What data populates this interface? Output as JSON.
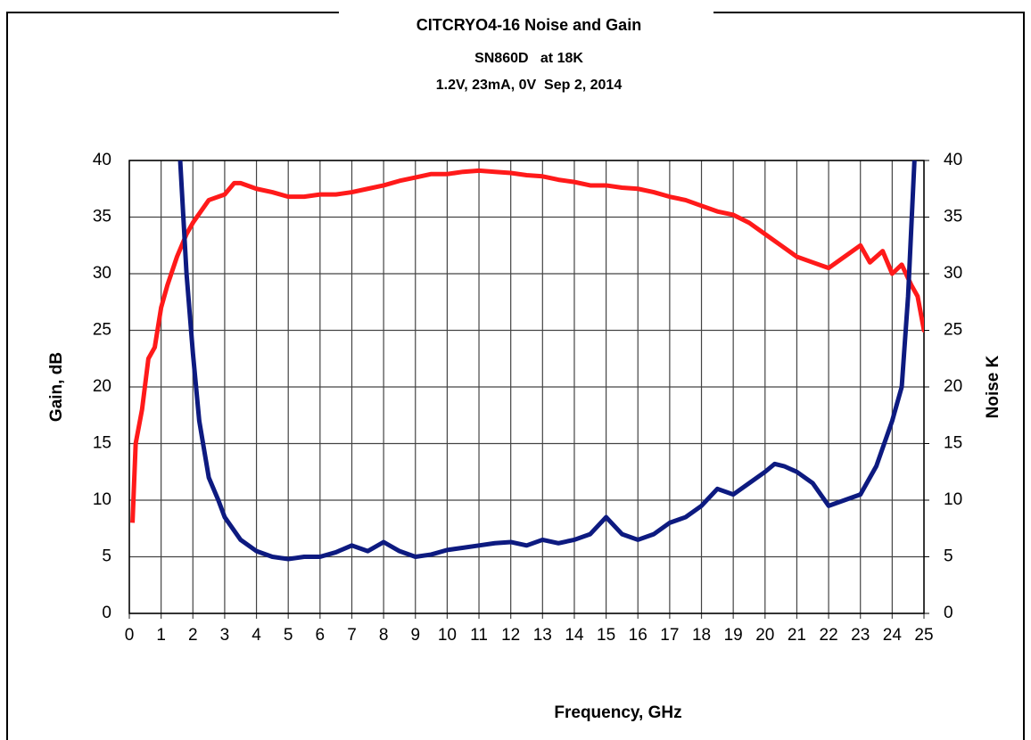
{
  "chart_data": {
    "type": "line",
    "title": "CITCRYO4-16 Noise and Gain",
    "subtitle": "SN860D   at 18K",
    "subtitle2": "1.2V, 23mA, 0V  Sep 2, 2014",
    "xlabel": "Frequency, GHz",
    "ylabel": "Gain, dB",
    "y2label": "Noise K",
    "xlim": [
      0,
      25
    ],
    "xticks": [
      0,
      1,
      2,
      3,
      4,
      5,
      6,
      7,
      8,
      9,
      10,
      11,
      12,
      13,
      14,
      15,
      16,
      17,
      18,
      19,
      20,
      21,
      22,
      23,
      24,
      25
    ],
    "ylim": [
      0,
      40
    ],
    "yticks": [
      0,
      5,
      10,
      15,
      20,
      25,
      30,
      35,
      40
    ],
    "y2lim": [
      0,
      40
    ],
    "y2ticks": [
      0,
      5,
      10,
      15,
      20,
      25,
      30,
      35,
      40
    ],
    "grid": true,
    "series": [
      {
        "color": "#ff1a1a",
        "axis": "y",
        "x": [
          0.1,
          0.2,
          0.4,
          0.6,
          0.8,
          1.0,
          1.2,
          1.5,
          1.8,
          2.0,
          2.5,
          3.0,
          3.3,
          3.5,
          4,
          4.5,
          5,
          5.5,
          6,
          6.5,
          7,
          7.5,
          8,
          8.5,
          9,
          9.5,
          10,
          10.5,
          11,
          11.5,
          12,
          12.5,
          13,
          13.5,
          14,
          14.5,
          15,
          15.5,
          16,
          16.5,
          17,
          17.5,
          18,
          18.5,
          19,
          19.5,
          20,
          20.5,
          21,
          21.5,
          22,
          22.5,
          23,
          23.3,
          23.7,
          24,
          24.3,
          24.6,
          24.8,
          25,
          25.1
        ],
        "values": [
          8,
          15,
          18,
          22.5,
          23.5,
          27,
          29,
          31.5,
          33.5,
          34.5,
          36.5,
          37,
          38,
          38,
          37.5,
          37.2,
          36.8,
          36.8,
          37,
          37,
          37.2,
          37.5,
          37.8,
          38.2,
          38.5,
          38.8,
          38.8,
          39,
          39.1,
          39,
          38.9,
          38.7,
          38.6,
          38.3,
          38.1,
          37.8,
          37.8,
          37.6,
          37.5,
          37.2,
          36.8,
          36.5,
          36,
          35.5,
          35.2,
          34.5,
          33.5,
          32.5,
          31.5,
          31,
          30.5,
          31.5,
          32.5,
          31,
          32,
          30,
          30.8,
          29,
          28,
          25,
          26
        ]
      },
      {
        "color": "#0d1a80",
        "axis": "y2",
        "x": [
          1.6,
          1.8,
          2.0,
          2.2,
          2.5,
          2.8,
          3,
          3.5,
          4,
          4.5,
          5,
          5.5,
          6,
          6.5,
          7,
          7.5,
          8,
          8.5,
          9,
          9.5,
          10,
          10.5,
          11,
          11.5,
          12,
          12.5,
          13,
          13.5,
          14,
          14.5,
          15,
          15.5,
          16,
          16.5,
          17,
          17.5,
          18,
          18.5,
          19,
          19.5,
          20,
          20.3,
          20.6,
          21,
          21.5,
          22,
          22.5,
          23,
          23.5,
          24,
          24.3,
          24.5,
          24.7
        ],
        "values": [
          40,
          30,
          23,
          17,
          12,
          10,
          8.5,
          6.5,
          5.5,
          5,
          4.8,
          5,
          5,
          5.4,
          6,
          5.5,
          6.3,
          5.5,
          5,
          5.2,
          5.6,
          5.8,
          6,
          6.2,
          6.3,
          6,
          6.5,
          6.2,
          6.5,
          7,
          8.5,
          7,
          6.5,
          7,
          8,
          8.5,
          9.5,
          11,
          10.5,
          11.5,
          12.5,
          13.2,
          13,
          12.5,
          11.5,
          9.5,
          10,
          10.5,
          13,
          17,
          20,
          28,
          40
        ]
      }
    ]
  }
}
